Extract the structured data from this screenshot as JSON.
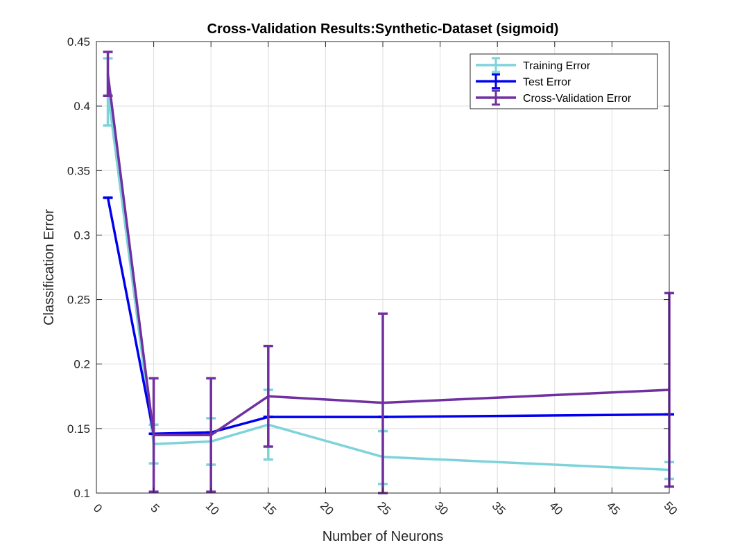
{
  "chart_data": {
    "type": "line",
    "title": "Cross-Validation Results:Synthetic-Dataset (sigmoid)",
    "xlabel": "Number of Neurons",
    "ylabel": "Classification Error",
    "xlim": [
      0,
      50
    ],
    "ylim": [
      0.1,
      0.45
    ],
    "x_ticks": [
      0,
      5,
      10,
      15,
      20,
      25,
      30,
      35,
      40,
      45,
      50
    ],
    "x_tick_labels": [
      "0",
      "5",
      "10",
      "15",
      "20",
      "25",
      "30",
      "35",
      "40",
      "45",
      "50"
    ],
    "y_ticks": [
      0.1,
      0.15,
      0.2,
      0.25,
      0.3,
      0.35,
      0.4,
      0.45
    ],
    "y_tick_labels": [
      "0.1",
      "0.15",
      "0.2",
      "0.25",
      "0.3",
      "0.35",
      "0.4",
      "0.45"
    ],
    "x_tick_rotation_deg": -45,
    "grid": true,
    "legend_position": "top-right",
    "x": [
      1,
      5,
      10,
      15,
      25,
      50
    ],
    "series": [
      {
        "name": "Training Error",
        "color": "#7ed3db",
        "values": [
          0.411,
          0.138,
          0.14,
          0.153,
          0.128,
          0.118
        ],
        "err_low": [
          0.385,
          0.123,
          0.122,
          0.126,
          0.107,
          0.111
        ],
        "err_high": [
          0.437,
          0.153,
          0.158,
          0.18,
          0.148,
          0.124
        ]
      },
      {
        "name": "Test Error",
        "color": "#0000ee",
        "values": [
          0.329,
          0.146,
          0.147,
          0.159,
          0.159,
          0.161
        ],
        "err_low": [
          0.329,
          0.146,
          0.147,
          0.159,
          0.159,
          0.161
        ],
        "err_high": [
          0.329,
          0.146,
          0.147,
          0.159,
          0.159,
          0.161
        ]
      },
      {
        "name": "Cross-Validation Error",
        "color": "#7030a0",
        "values": [
          0.425,
          0.145,
          0.145,
          0.175,
          0.17,
          0.18
        ],
        "err_low": [
          0.408,
          0.101,
          0.101,
          0.136,
          0.1,
          0.105
        ],
        "err_high": [
          0.442,
          0.189,
          0.189,
          0.214,
          0.239,
          0.255
        ]
      }
    ]
  }
}
